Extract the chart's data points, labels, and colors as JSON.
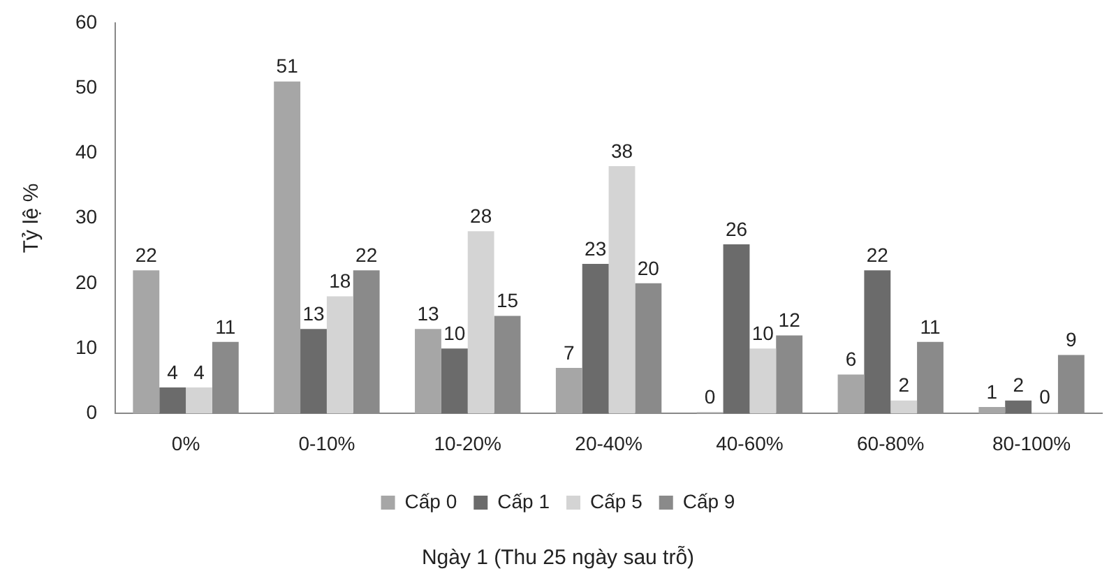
{
  "chart_data": {
    "type": "bar",
    "xlabel": "Ngày 1 (Thu 25 ngày sau trỗ)",
    "ylabel": "Tỷ lệ %",
    "categories": [
      "0%",
      "0-10%",
      "10-20%",
      "20-40%",
      "40-60%",
      "60-80%",
      "80-100%"
    ],
    "series": [
      {
        "name": "Cấp 0",
        "color": "#a6a6a6",
        "values": [
          22,
          51,
          13,
          7,
          0,
          6,
          1
        ]
      },
      {
        "name": "Cấp 1",
        "color": "#6b6b6b",
        "values": [
          4,
          13,
          10,
          23,
          26,
          22,
          2
        ]
      },
      {
        "name": "Cấp 5",
        "color": "#d4d4d4",
        "values": [
          4,
          18,
          28,
          38,
          10,
          2,
          0
        ]
      },
      {
        "name": "Cấp 9",
        "color": "#8a8a8a",
        "values": [
          11,
          22,
          15,
          20,
          12,
          11,
          9
        ]
      }
    ],
    "ylim": [
      0,
      60
    ],
    "yticks": [
      0,
      10,
      20,
      30,
      40,
      50,
      60
    ],
    "grid": false,
    "legend": "bottom",
    "data_labels": true
  }
}
